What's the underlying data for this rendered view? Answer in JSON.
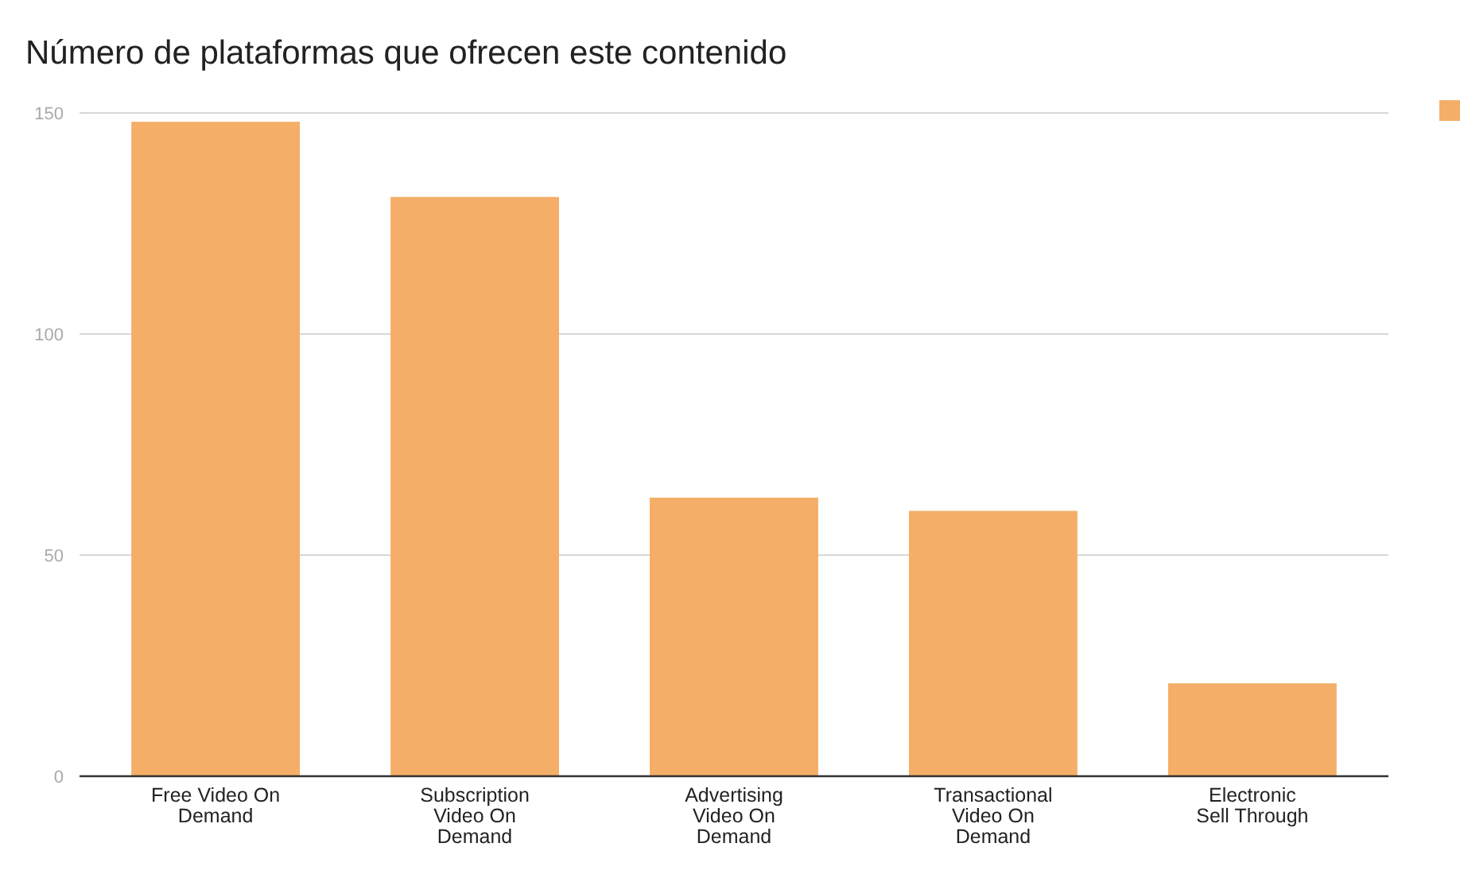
{
  "chart_data": {
    "type": "bar",
    "title": "Número de plataformas que ofrecen este contenido",
    "categories": [
      "Free Video On Demand",
      "Subscription Video On Demand",
      "Advertising Video On Demand",
      "Transactional Video On Demand",
      "Electronic Sell Through"
    ],
    "series": [
      {
        "color": "#f4ae67",
        "values": [
          148,
          131,
          63,
          60,
          21
        ]
      }
    ],
    "ylim": [
      0,
      150
    ],
    "yticks": [
      0,
      50,
      100,
      150
    ],
    "grid": "y"
  }
}
